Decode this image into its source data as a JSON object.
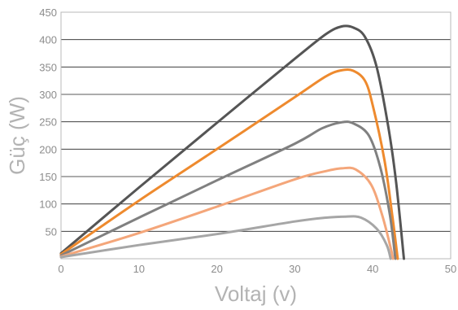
{
  "chart_data": {
    "type": "line",
    "title": "",
    "xlabel": "Voltaj (v)",
    "ylabel": "Güç (W)",
    "xlim": [
      0,
      50
    ],
    "ylim": [
      0,
      450
    ],
    "xticks": [
      "0",
      "10",
      "20",
      "30",
      "40",
      "50"
    ],
    "yticks": [
      "50",
      "100",
      "150",
      "200",
      "250",
      "300",
      "350",
      "400",
      "450"
    ],
    "grid": "horizontal",
    "series": [
      {
        "color": "#555555",
        "points": [
          [
            0,
            10
          ],
          [
            10,
            130
          ],
          [
            20,
            248
          ],
          [
            30,
            365
          ],
          [
            34,
            410
          ],
          [
            36,
            424
          ],
          [
            37.5,
            422
          ],
          [
            39,
            405
          ],
          [
            40.5,
            350
          ],
          [
            42,
            240
          ],
          [
            43,
            140
          ],
          [
            44,
            0
          ]
        ]
      },
      {
        "color": "#ee8a2e",
        "points": [
          [
            0,
            8
          ],
          [
            10,
            106
          ],
          [
            20,
            200
          ],
          [
            30,
            295
          ],
          [
            34,
            333
          ],
          [
            36,
            344
          ],
          [
            37.5,
            343
          ],
          [
            39,
            325
          ],
          [
            40,
            280
          ],
          [
            41.5,
            180
          ],
          [
            42.5,
            80
          ],
          [
            43.2,
            0
          ]
        ]
      },
      {
        "color": "#808080",
        "points": [
          [
            0,
            6
          ],
          [
            10,
            75
          ],
          [
            20,
            143
          ],
          [
            30,
            210
          ],
          [
            33.5,
            238
          ],
          [
            36,
            249
          ],
          [
            37.5,
            247
          ],
          [
            39.5,
            225
          ],
          [
            41,
            165
          ],
          [
            42.2,
            80
          ],
          [
            42.9,
            0
          ]
        ]
      },
      {
        "color": "#f4a67a",
        "points": [
          [
            0,
            4
          ],
          [
            10,
            47
          ],
          [
            20,
            95
          ],
          [
            30,
            145
          ],
          [
            34,
            160
          ],
          [
            36,
            165
          ],
          [
            37.8,
            163
          ],
          [
            39.8,
            135
          ],
          [
            41.2,
            80
          ],
          [
            42.3,
            20
          ],
          [
            42.6,
            0
          ]
        ]
      },
      {
        "color": "#a6a6a6",
        "points": [
          [
            0,
            3
          ],
          [
            10,
            25
          ],
          [
            20,
            45
          ],
          [
            30,
            68
          ],
          [
            34,
            75
          ],
          [
            36.5,
            77
          ],
          [
            38.5,
            75
          ],
          [
            40.5,
            55
          ],
          [
            41.8,
            25
          ],
          [
            42.3,
            0
          ]
        ]
      }
    ]
  }
}
